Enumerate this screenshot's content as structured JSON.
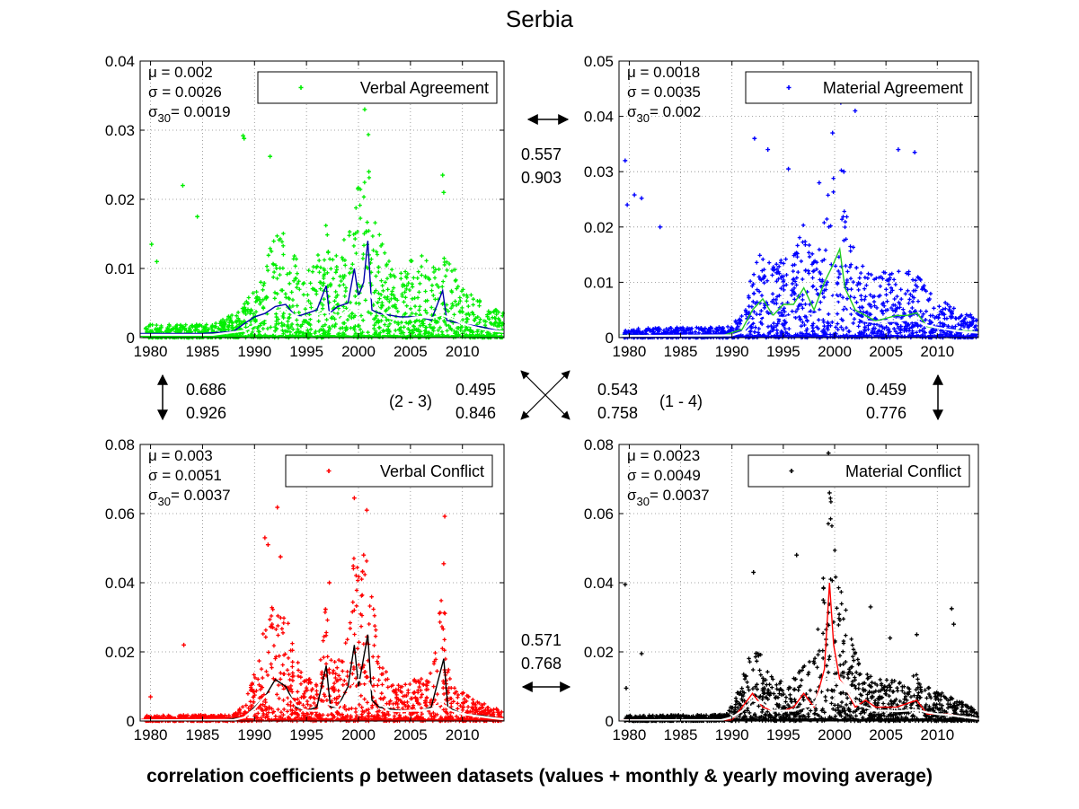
{
  "title": "Serbia",
  "caption": "correlation coefficients ρ between datasets (values + monthly & yearly moving average)",
  "colors": {
    "verbal_agreement": "#00ee00",
    "material_agreement": "#0000ff",
    "verbal_conflict": "#ff0000",
    "material_conflict": "#000000",
    "grid": "#888888"
  },
  "correlations": {
    "top": [
      "0.557",
      "0.903"
    ],
    "left": [
      "0.686",
      "0.926"
    ],
    "right": [
      "0.459",
      "0.776"
    ],
    "bottom": [
      "0.571",
      "0.768"
    ],
    "diag_2_3": [
      "0.495",
      "0.846"
    ],
    "diag_1_4": [
      "0.543",
      "0.758"
    ],
    "label_2_3": "(2 - 3)",
    "label_1_4": "(1 - 4)"
  },
  "chart_data": [
    {
      "type": "scatter",
      "panel": 1,
      "legend": "Verbal Agreement",
      "stats": {
        "mu": "= 0.002",
        "sigma": "= 0.0026",
        "sigma30": "= 0.0019"
      },
      "xlim": [
        1979,
        2014
      ],
      "ylim": [
        0,
        0.04
      ],
      "yticks": [
        "0",
        "0.01",
        "0.02",
        "0.03",
        "0.04"
      ],
      "yticks_values": [
        0,
        0.01,
        0.02,
        0.03,
        0.04
      ],
      "xticks": [
        "1980",
        "1985",
        "1990",
        "1995",
        "2000",
        "2005",
        "2010"
      ],
      "point_color": "#00ee00",
      "monthly_color": "#0000aa",
      "yearly_color": "#ffffff",
      "outliers": [
        [
          1980.1,
          0.0135
        ],
        [
          1980.6,
          0.011
        ],
        [
          1983.1,
          0.022
        ],
        [
          1984.5,
          0.0175
        ],
        [
          1988.9,
          0.0292
        ],
        [
          1989.0,
          0.0288
        ],
        [
          1991.5,
          0.0262
        ],
        [
          2000.6,
          0.033
        ],
        [
          2000.8,
          0.0345
        ],
        [
          2001.0,
          0.024
        ],
        [
          2008.1,
          0.0235
        ],
        [
          2008.2,
          0.021
        ]
      ],
      "monthly": [
        [
          1979,
          0.0006
        ],
        [
          1985,
          0.0006
        ],
        [
          1988,
          0.0009
        ],
        [
          1989,
          0.002
        ],
        [
          1990,
          0.003
        ],
        [
          1991,
          0.0035
        ],
        [
          1992,
          0.0045
        ],
        [
          1993,
          0.0048
        ],
        [
          1994,
          0.003
        ],
        [
          1995,
          0.0035
        ],
        [
          1996,
          0.004
        ],
        [
          1996.9,
          0.0075
        ],
        [
          1997.2,
          0.0035
        ],
        [
          1998,
          0.0045
        ],
        [
          1999,
          0.005
        ],
        [
          1999.6,
          0.01
        ],
        [
          2000,
          0.006
        ],
        [
          2000.5,
          0.008
        ],
        [
          2000.9,
          0.014
        ],
        [
          2001.3,
          0.004
        ],
        [
          2002,
          0.0035
        ],
        [
          2004,
          0.003
        ],
        [
          2006,
          0.003
        ],
        [
          2007,
          0.0025
        ],
        [
          2008.1,
          0.0068
        ],
        [
          2008.5,
          0.0025
        ],
        [
          2010,
          0.002
        ],
        [
          2012,
          0.0015
        ],
        [
          2014,
          0.0008
        ]
      ],
      "yearly": [
        [
          1979,
          0.0004
        ],
        [
          1986,
          0.0004
        ],
        [
          1989,
          0.001
        ],
        [
          1990,
          0.0018
        ],
        [
          1991,
          0.0028
        ],
        [
          1992,
          0.0038
        ],
        [
          1993,
          0.0042
        ],
        [
          1994,
          0.003
        ],
        [
          1995,
          0.0028
        ],
        [
          1996,
          0.0033
        ],
        [
          1997,
          0.0038
        ],
        [
          1998,
          0.003
        ],
        [
          1999,
          0.004
        ],
        [
          2000,
          0.006
        ],
        [
          2001,
          0.0065
        ],
        [
          2002,
          0.004
        ],
        [
          2003,
          0.0028
        ],
        [
          2004,
          0.0026
        ],
        [
          2005,
          0.0028
        ],
        [
          2006,
          0.003
        ],
        [
          2007,
          0.0028
        ],
        [
          2008,
          0.0033
        ],
        [
          2009,
          0.0027
        ],
        [
          2010,
          0.002
        ],
        [
          2011,
          0.0016
        ],
        [
          2012,
          0.0012
        ],
        [
          2013,
          0.001
        ],
        [
          2014,
          0.0008
        ]
      ]
    },
    {
      "type": "scatter",
      "panel": 2,
      "legend": "Material Agreement",
      "stats": {
        "mu": "= 0.0018",
        "sigma": "= 0.0035",
        "sigma30": "= 0.002"
      },
      "xlim": [
        1979,
        2014
      ],
      "ylim": [
        0,
        0.05
      ],
      "yticks": [
        "0",
        "0.01",
        "0.02",
        "0.03",
        "0.04",
        "0.05"
      ],
      "yticks_values": [
        0,
        0.01,
        0.02,
        0.03,
        0.04,
        0.05
      ],
      "xticks": [
        "1980",
        "1985",
        "1990",
        "1995",
        "2000",
        "2005",
        "2010"
      ],
      "point_color": "#0000ff",
      "monthly_color": "#22cc22",
      "yearly_color": "#ffffff",
      "outliers": [
        [
          1979.6,
          0.032
        ],
        [
          1979.8,
          0.024
        ],
        [
          1980.5,
          0.0258
        ],
        [
          1981.2,
          0.0252
        ],
        [
          1983.0,
          0.02
        ],
        [
          1992.2,
          0.036
        ],
        [
          1993.5,
          0.034
        ],
        [
          1995.5,
          0.0305
        ],
        [
          1999.8,
          0.037
        ],
        [
          2000.6,
          0.0425
        ],
        [
          2002.0,
          0.041
        ],
        [
          2006.2,
          0.034
        ],
        [
          2007.8,
          0.0335
        ],
        [
          2000.9,
          0.03
        ],
        [
          1998.5,
          0.028
        ]
      ],
      "monthly": [
        [
          1979,
          0.0004
        ],
        [
          1989,
          0.0003
        ],
        [
          1991,
          0.0015
        ],
        [
          1992,
          0.005
        ],
        [
          1993,
          0.007
        ],
        [
          1994,
          0.004
        ],
        [
          1995,
          0.006
        ],
        [
          1996,
          0.006
        ],
        [
          1997,
          0.009
        ],
        [
          1998,
          0.005
        ],
        [
          1999,
          0.01
        ],
        [
          1999.8,
          0.013
        ],
        [
          2000.5,
          0.016
        ],
        [
          2001,
          0.009
        ],
        [
          2002,
          0.005
        ],
        [
          2004,
          0.003
        ],
        [
          2006,
          0.004
        ],
        [
          2007,
          0.004
        ],
        [
          2008,
          0.0045
        ],
        [
          2009,
          0.002
        ],
        [
          2011,
          0.0015
        ],
        [
          2014,
          0.001
        ]
      ],
      "yearly": [
        [
          1979,
          0.0003
        ],
        [
          1990,
          0.0004
        ],
        [
          1991,
          0.001
        ],
        [
          1992,
          0.003
        ],
        [
          1993,
          0.004
        ],
        [
          1994,
          0.0038
        ],
        [
          1995,
          0.0035
        ],
        [
          1996,
          0.004
        ],
        [
          1997,
          0.0045
        ],
        [
          1998,
          0.0042
        ],
        [
          1999,
          0.005
        ],
        [
          2000,
          0.0075
        ],
        [
          2001,
          0.006
        ],
        [
          2002,
          0.004
        ],
        [
          2003,
          0.003
        ],
        [
          2004,
          0.0028
        ],
        [
          2005,
          0.003
        ],
        [
          2006,
          0.003
        ],
        [
          2007,
          0.0032
        ],
        [
          2008,
          0.003
        ],
        [
          2009,
          0.0022
        ],
        [
          2010,
          0.0018
        ],
        [
          2011,
          0.0015
        ],
        [
          2012,
          0.0012
        ],
        [
          2013,
          0.001
        ],
        [
          2014,
          0.0009
        ]
      ]
    },
    {
      "type": "scatter",
      "panel": 3,
      "legend": "Verbal Conflict",
      "stats": {
        "mu": "= 0.003",
        "sigma": "= 0.0051",
        "sigma30": "= 0.0037"
      },
      "xlim": [
        1979,
        2014
      ],
      "ylim": [
        0,
        0.08
      ],
      "yticks": [
        "0",
        "0.02",
        "0.04",
        "0.06",
        "0.08"
      ],
      "yticks_values": [
        0,
        0.02,
        0.04,
        0.06,
        0.08
      ],
      "xticks": [
        "1980",
        "1985",
        "1990",
        "1995",
        "2000",
        "2005",
        "2010"
      ],
      "point_color": "#ff0000",
      "monthly_color": "#000000",
      "yearly_color": "#ffffff",
      "outliers": [
        [
          1983.2,
          0.022
        ],
        [
          1991.0,
          0.053
        ],
        [
          1991.3,
          0.051
        ],
        [
          1992.2,
          0.0618
        ],
        [
          1992.5,
          0.0475
        ],
        [
          1997.2,
          0.04
        ],
        [
          1999.6,
          0.0645
        ],
        [
          2000.8,
          0.061
        ],
        [
          2000.5,
          0.048
        ],
        [
          2008.3,
          0.0592
        ],
        [
          2008.2,
          0.0455
        ],
        [
          1980.0,
          0.007
        ]
      ],
      "monthly": [
        [
          1979,
          0.0003
        ],
        [
          1987,
          0.0003
        ],
        [
          1989,
          0.001
        ],
        [
          1990,
          0.004
        ],
        [
          1991,
          0.007
        ],
        [
          1992,
          0.012
        ],
        [
          1993,
          0.01
        ],
        [
          1994,
          0.004
        ],
        [
          1995,
          0.003
        ],
        [
          1996,
          0.004
        ],
        [
          1996.9,
          0.016
        ],
        [
          1997.3,
          0.004
        ],
        [
          1998,
          0.004
        ],
        [
          1999,
          0.01
        ],
        [
          1999.6,
          0.022
        ],
        [
          2000,
          0.01
        ],
        [
          2000.9,
          0.025
        ],
        [
          2001.3,
          0.006
        ],
        [
          2002,
          0.004
        ],
        [
          2004,
          0.003
        ],
        [
          2006,
          0.003
        ],
        [
          2007,
          0.004
        ],
        [
          2008.2,
          0.018
        ],
        [
          2008.6,
          0.004
        ],
        [
          2010,
          0.002
        ],
        [
          2012,
          0.0015
        ],
        [
          2014,
          0.0005
        ]
      ],
      "yearly": [
        [
          1979,
          0.0002
        ],
        [
          1988,
          0.0003
        ],
        [
          1989,
          0.001
        ],
        [
          1990,
          0.0035
        ],
        [
          1991,
          0.007
        ],
        [
          1992,
          0.009
        ],
        [
          1993,
          0.0085
        ],
        [
          1994,
          0.0045
        ],
        [
          1995,
          0.003
        ],
        [
          1996,
          0.003
        ],
        [
          1997,
          0.005
        ],
        [
          1998,
          0.004
        ],
        [
          1999,
          0.008
        ],
        [
          2000,
          0.012
        ],
        [
          2001,
          0.011
        ],
        [
          2002,
          0.005
        ],
        [
          2003,
          0.003
        ],
        [
          2004,
          0.0028
        ],
        [
          2005,
          0.003
        ],
        [
          2006,
          0.003
        ],
        [
          2007,
          0.0035
        ],
        [
          2008,
          0.005
        ],
        [
          2009,
          0.003
        ],
        [
          2010,
          0.002
        ],
        [
          2011,
          0.0016
        ],
        [
          2012,
          0.0012
        ],
        [
          2013,
          0.0008
        ],
        [
          2014,
          0.0005
        ]
      ]
    },
    {
      "type": "scatter",
      "panel": 4,
      "legend": "Material Conflict",
      "stats": {
        "mu": "= 0.0023",
        "sigma": "= 0.0049",
        "sigma30": "= 0.0037"
      },
      "xlim": [
        1979,
        2014
      ],
      "ylim": [
        0,
        0.08
      ],
      "yticks": [
        "0",
        "0.02",
        "0.04",
        "0.06",
        "0.08"
      ],
      "yticks_values": [
        0,
        0.02,
        0.04,
        0.06,
        0.08
      ],
      "xticks": [
        "1980",
        "1985",
        "1990",
        "1995",
        "2000",
        "2005",
        "2010"
      ],
      "point_color": "#000000",
      "monthly_color": "#ff0000",
      "yearly_color": "#ffffff",
      "outliers": [
        [
          1979.6,
          0.0395
        ],
        [
          1979.7,
          0.0095
        ],
        [
          1981.2,
          0.0195
        ],
        [
          1992.1,
          0.043
        ],
        [
          1996.3,
          0.048
        ],
        [
          1999.4,
          0.0775
        ],
        [
          1999.6,
          0.074
        ],
        [
          1999.7,
          0.07
        ],
        [
          1999.5,
          0.066
        ],
        [
          2003.5,
          0.033
        ],
        [
          2005.4,
          0.024
        ],
        [
          2008.0,
          0.025
        ],
        [
          2011.4,
          0.0325
        ],
        [
          2011.6,
          0.028
        ]
      ],
      "monthly": [
        [
          1979,
          0.0003
        ],
        [
          1990,
          0.0003
        ],
        [
          1991,
          0.004
        ],
        [
          1992,
          0.008
        ],
        [
          1993,
          0.004
        ],
        [
          1994,
          0.003
        ],
        [
          1995,
          0.003
        ],
        [
          1996,
          0.004
        ],
        [
          1997,
          0.008
        ],
        [
          1998,
          0.004
        ],
        [
          1999,
          0.015
        ],
        [
          1999.5,
          0.04
        ],
        [
          1999.9,
          0.022
        ],
        [
          2000.5,
          0.012
        ],
        [
          2001,
          0.01
        ],
        [
          2002,
          0.004
        ],
        [
          2003,
          0.006
        ],
        [
          2004,
          0.004
        ],
        [
          2006,
          0.004
        ],
        [
          2008,
          0.006
        ],
        [
          2009,
          0.002
        ],
        [
          2011,
          0.002
        ],
        [
          2014,
          0.0005
        ]
      ],
      "yearly": [
        [
          1979,
          0.0002
        ],
        [
          1989,
          0.0003
        ],
        [
          1990,
          0.001
        ],
        [
          1991,
          0.003
        ],
        [
          1992,
          0.006
        ],
        [
          1993,
          0.005
        ],
        [
          1994,
          0.003
        ],
        [
          1995,
          0.003
        ],
        [
          1996,
          0.003
        ],
        [
          1997,
          0.004
        ],
        [
          1998,
          0.0045
        ],
        [
          1999,
          0.012
        ],
        [
          2000,
          0.013
        ],
        [
          2001,
          0.01
        ],
        [
          2002,
          0.005
        ],
        [
          2003,
          0.004
        ],
        [
          2004,
          0.003
        ],
        [
          2005,
          0.003
        ],
        [
          2006,
          0.0028
        ],
        [
          2007,
          0.003
        ],
        [
          2008,
          0.0032
        ],
        [
          2009,
          0.0025
        ],
        [
          2010,
          0.002
        ],
        [
          2011,
          0.0018
        ],
        [
          2012,
          0.0014
        ],
        [
          2013,
          0.001
        ],
        [
          2014,
          0.0006
        ]
      ]
    }
  ]
}
